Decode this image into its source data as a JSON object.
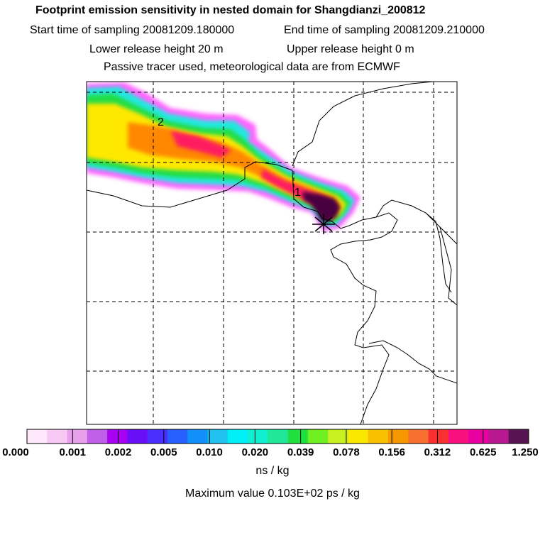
{
  "header": {
    "title": "Footprint emission sensitivity in nested domain for Shangdianzi_200812",
    "start_time": "Start time of sampling 20081209.180000",
    "end_time": "End time of sampling 20081209.210000",
    "lower_release": "Lower release height   20 m",
    "upper_release": "Upper release height    0 m",
    "tracer_note": "Passive tracer used, meteorological data are from ECMWF"
  },
  "map": {
    "labels": [
      {
        "text": "2"
      },
      {
        "text": "1"
      }
    ],
    "colors": {
      "plume_outer": "#ff66ff",
      "plume_cyan": "#22e8e0",
      "plume_green": "#22dd44",
      "plume_yellow": "#ffe800",
      "plume_orange": "#ff8800",
      "plume_red": "#ff1a60",
      "plume_max": "#4a0040"
    }
  },
  "colorbar": {
    "colors": [
      "#fde8fc",
      "#f8c8f4",
      "#e8a0ec",
      "#c060e8",
      "#a800f0",
      "#6a0ef8",
      "#4a30ff",
      "#2860ff",
      "#1090f8",
      "#20c0f0",
      "#00f0f8",
      "#10f0d0",
      "#20e898",
      "#20e040",
      "#70f020",
      "#c8f020",
      "#f8e800",
      "#f8c000",
      "#f89800",
      "#f87030",
      "#f83030",
      "#f81080",
      "#e800a0",
      "#b81890",
      "#581450"
    ],
    "tick_labels": [
      "0.000",
      "0.001",
      "0.002",
      "0.005",
      "0.010",
      "0.020",
      "0.039",
      "0.078",
      "0.156",
      "0.312",
      "0.625",
      "1.250"
    ]
  },
  "footer": {
    "units": "ns / kg",
    "max_value": "Maximum value  0.103E+02 ps / kg"
  }
}
